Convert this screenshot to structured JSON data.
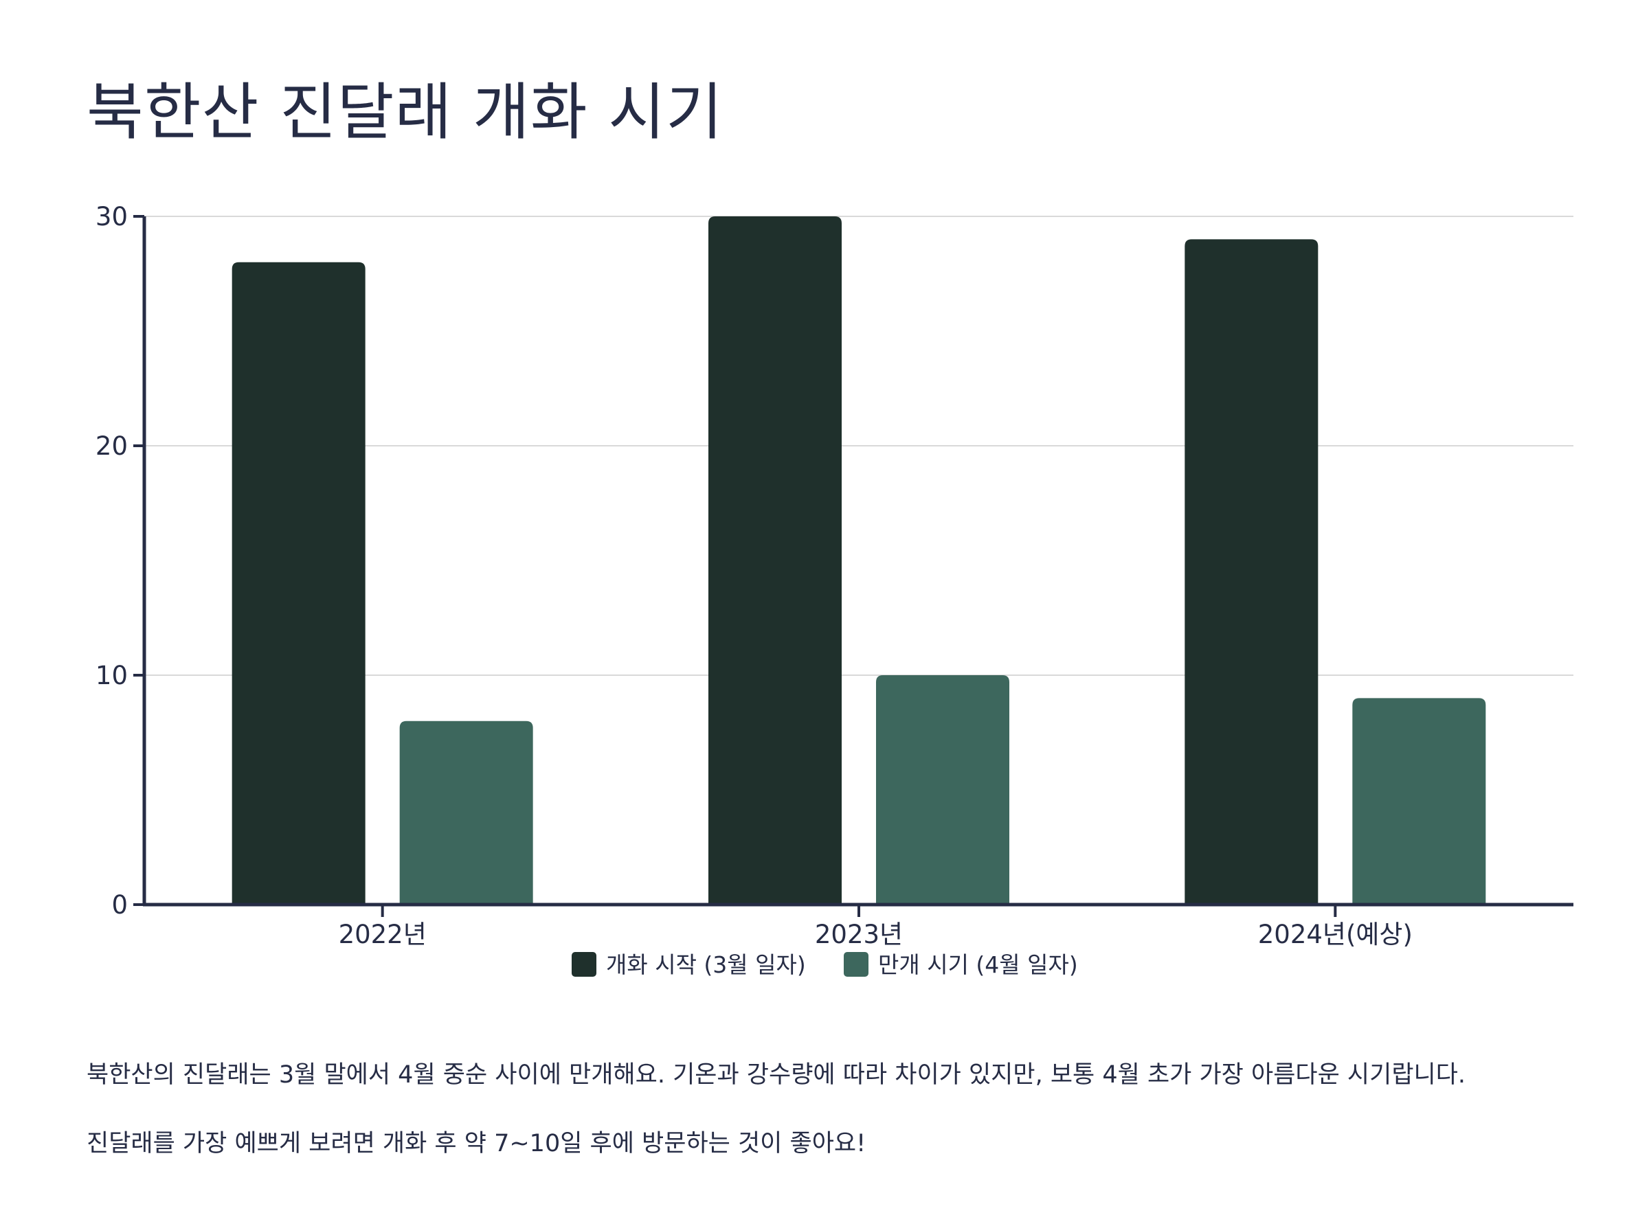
{
  "title": "북한산 진달래 개화 시기",
  "chart_data": {
    "type": "bar",
    "categories": [
      "2022년",
      "2023년",
      "2024년(예상)"
    ],
    "series": [
      {
        "name": "개화 시작 (3월 일자)",
        "values": [
          28,
          30,
          29
        ],
        "color": "#1f302c"
      },
      {
        "name": "만개 시기 (4월 일자)",
        "values": [
          8,
          10,
          9
        ],
        "color": "#3d675d"
      }
    ],
    "ylim": [
      0,
      30
    ],
    "yticks": [
      0,
      10,
      20,
      30
    ],
    "grid": true,
    "legend_position": "bottom-center"
  },
  "notes": [
    "북한산의 진달래는 3월 말에서 4월 중순 사이에 만개해요. 기온과 강수량에 따라 차이가 있지만, 보통 4월 초가 가장 아름다운 시기랍니다.",
    "진달래를 가장 예쁘게 보려면 개화 후 약 7~10일 후에 방문하는 것이 좋아요!"
  ]
}
